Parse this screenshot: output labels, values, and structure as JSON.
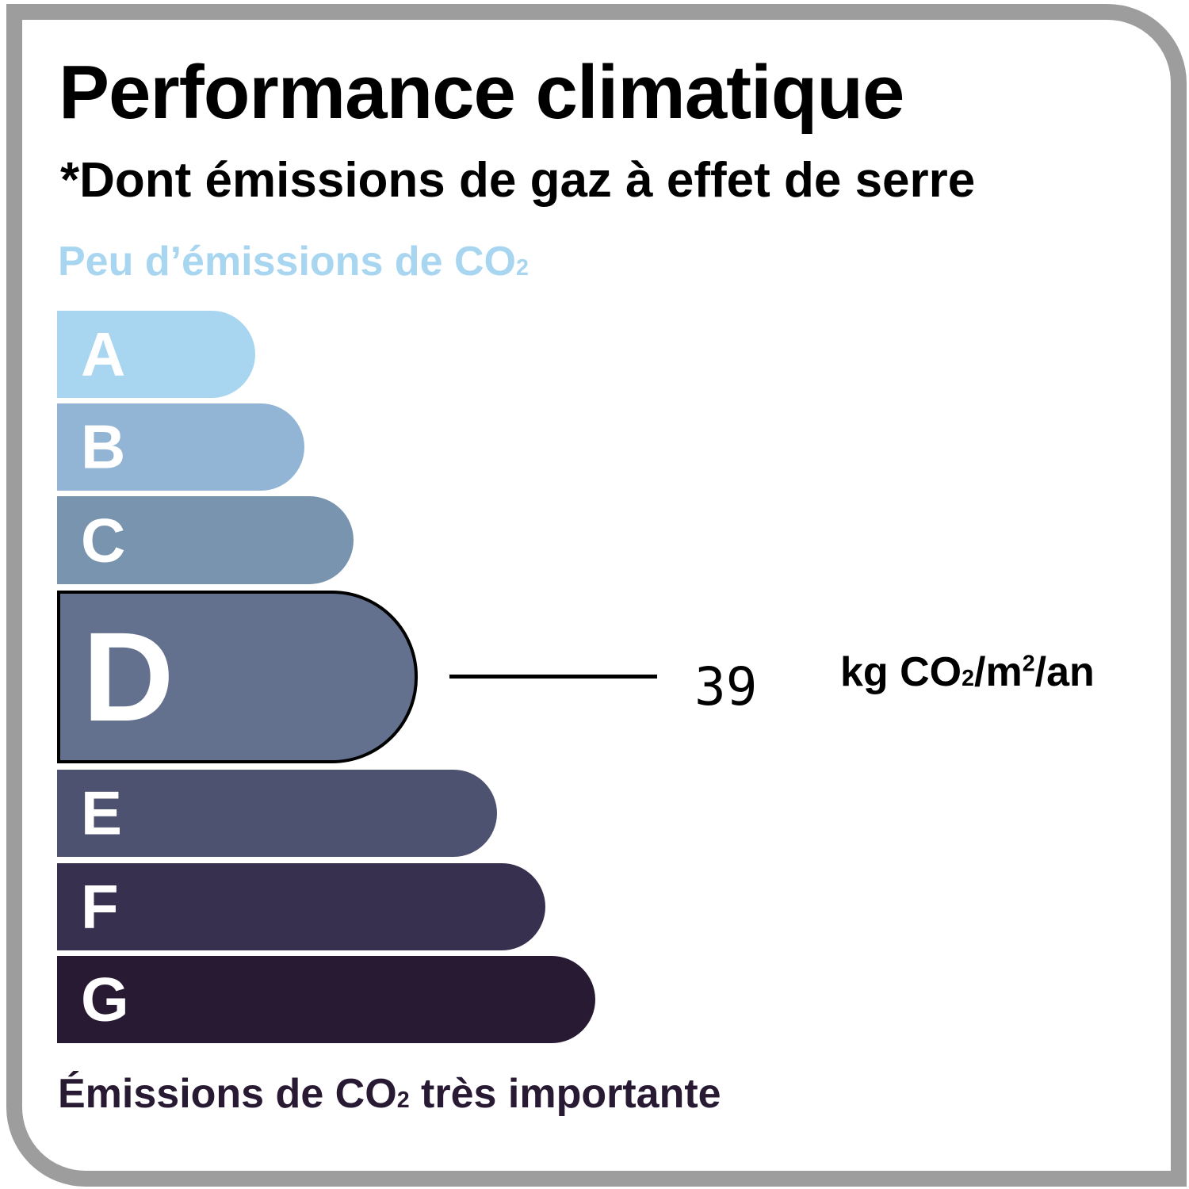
{
  "title": "Performance climatique",
  "subtitle": "*Dont émissions de gaz à effet de serre",
  "scale_low_label": {
    "text": "Peu d’émissions de CO",
    "sub": "2"
  },
  "scale_high_label": {
    "pre": "Émissions de CO",
    "sub": "2",
    "post": " très importante"
  },
  "classes": [
    {
      "letter": "A",
      "color": "#a8d6f0"
    },
    {
      "letter": "B",
      "color": "#92b5d6"
    },
    {
      "letter": "C",
      "color": "#7894ae"
    },
    {
      "letter": "D",
      "color": "#63718e"
    },
    {
      "letter": "E",
      "color": "#4e5271"
    },
    {
      "letter": "F",
      "color": "#37314f"
    },
    {
      "letter": "G",
      "color": "#291a34"
    }
  ],
  "active_class": "D",
  "value": "39",
  "unit": {
    "pre": "kg CO",
    "sub": "2",
    "mid": "/m",
    "sup": "2",
    "post": "/an"
  }
}
